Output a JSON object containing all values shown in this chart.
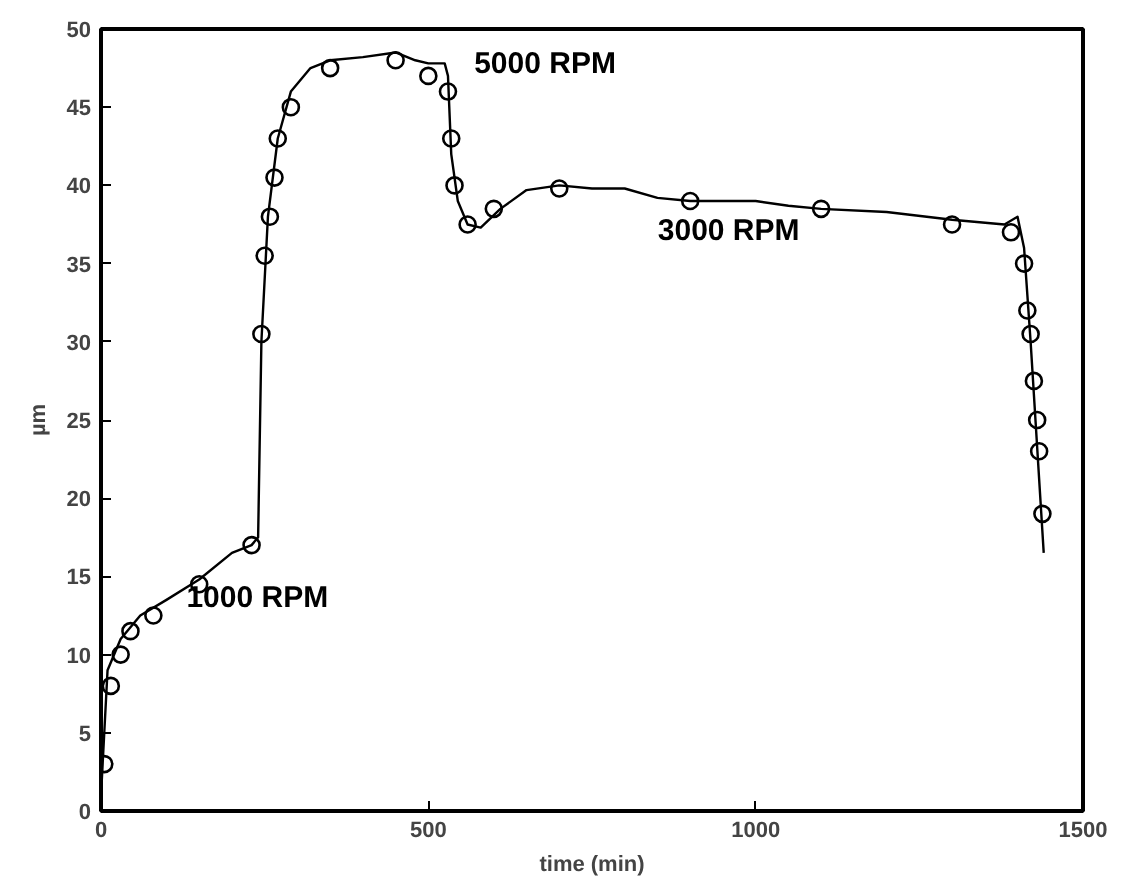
{
  "chart_data": {
    "type": "line",
    "xlabel": "time (min)",
    "ylabel": "µm",
    "xlim": [
      0,
      1500
    ],
    "ylim": [
      0,
      50
    ],
    "xticks": [
      0,
      500,
      1000,
      1500
    ],
    "yticks": [
      0,
      5,
      10,
      15,
      20,
      25,
      30,
      35,
      40,
      45,
      50
    ],
    "grid": false,
    "annotations": [
      "5000 RPM",
      "3000 RPM",
      "1000 RPM"
    ],
    "series": [
      {
        "color": "#000000",
        "marker": "none",
        "line_style": "solid",
        "x": [
          0,
          5,
          10,
          30,
          60,
          100,
          150,
          200,
          230,
          240,
          245,
          255,
          270,
          290,
          320,
          350,
          400,
          450,
          480,
          500,
          525,
          530,
          535,
          545,
          560,
          580,
          610,
          650,
          700,
          750,
          800,
          850,
          900,
          1000,
          1050,
          1100,
          1200,
          1300,
          1380,
          1400,
          1410,
          1420,
          1440
        ],
        "values": [
          1,
          5,
          9,
          11,
          12.5,
          13.5,
          14.8,
          16.5,
          17,
          17.5,
          30,
          38,
          43,
          46,
          47.5,
          48,
          48.2,
          48.5,
          48,
          47.8,
          47.8,
          47,
          42,
          39,
          37.5,
          37.3,
          38.5,
          39.7,
          40,
          39.8,
          39.8,
          39.2,
          39,
          39,
          38.7,
          38.5,
          38.3,
          37.8,
          37.5,
          38,
          36,
          30,
          16.5
        ]
      },
      {
        "type": "scatter",
        "color": "#000000",
        "marker": "circle",
        "x": [
          5,
          15,
          30,
          45,
          80,
          150,
          230,
          245,
          250,
          258,
          265,
          270,
          290,
          350,
          450,
          500,
          530,
          535,
          540,
          560,
          600,
          700,
          900,
          1100,
          1300,
          1390,
          1410,
          1415,
          1420,
          1425,
          1430,
          1433,
          1438
        ],
        "values": [
          3,
          8,
          10,
          11.5,
          12.5,
          14.5,
          17,
          30.5,
          35.5,
          38,
          40.5,
          43,
          45,
          47.5,
          48,
          47,
          46,
          43,
          40,
          37.5,
          38.5,
          39.8,
          39,
          38.5,
          37.5,
          37,
          35,
          32,
          30.5,
          27.5,
          25,
          23,
          19
        ]
      }
    ]
  }
}
